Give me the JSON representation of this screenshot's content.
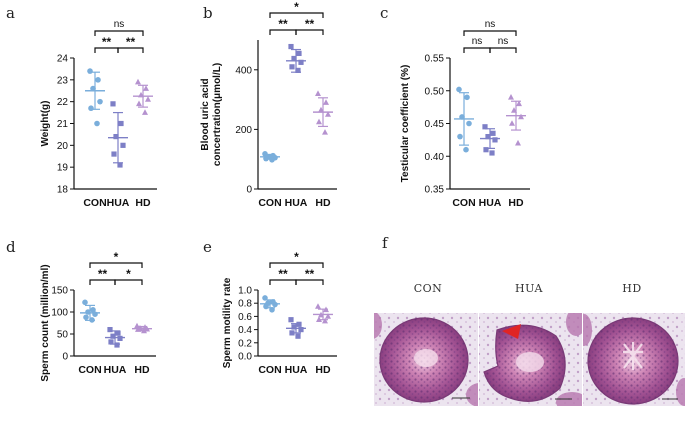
{
  "colors": {
    "CON": "#7aaedb",
    "HUA": "#7d7fc6",
    "HD": "#b592cf",
    "arrow": "#e02424"
  },
  "chart_data": [
    {
      "panel": "a",
      "type": "scatter",
      "ylabel": "Weight(g)",
      "categories": [
        "CON",
        "HUA",
        "HD"
      ],
      "ylim": [
        18,
        24
      ],
      "yticks": [
        "18",
        "19",
        "20",
        "21",
        "22",
        "23",
        "24"
      ],
      "ytick_values": [
        18,
        19,
        20,
        21,
        22,
        23,
        24
      ],
      "series": [
        {
          "name": "CON",
          "shape": "circle",
          "mean": 22.5,
          "sd": 0.85,
          "points": [
            23.4,
            23.0,
            22.6,
            22.0,
            21.7,
            21.0
          ]
        },
        {
          "name": "HUA",
          "shape": "square",
          "mean": 20.35,
          "sd": 1.15,
          "points": [
            21.9,
            21.0,
            20.4,
            20.0,
            19.6,
            19.1
          ]
        },
        {
          "name": "HD",
          "shape": "triangle",
          "mean": 22.25,
          "sd": 0.5,
          "points": [
            22.9,
            22.6,
            22.3,
            22.1,
            21.9,
            21.5
          ]
        }
      ],
      "significance": [
        {
          "from": 0,
          "to": 1,
          "label": "**",
          "level": 0
        },
        {
          "from": 1,
          "to": 2,
          "label": "**",
          "level": 0
        },
        {
          "from": 0,
          "to": 2,
          "label": "ns",
          "level": 1
        }
      ]
    },
    {
      "panel": "b",
      "type": "scatter",
      "ylabel": "Blood uric acid concertration(μmol/L)",
      "ylabel_lines": [
        "Blood uric acid",
        "concertration(μmol/L)"
      ],
      "categories": [
        "CON",
        "HUA",
        "HD"
      ],
      "ylim": [
        0,
        500
      ],
      "yticks": [
        "0",
        "200",
        "400"
      ],
      "ytick_values": [
        0,
        200,
        400
      ],
      "series": [
        {
          "name": "CON",
          "shape": "circle",
          "mean": 108,
          "sd": 8,
          "points": [
            118,
            112,
            108,
            105,
            102,
            98
          ]
        },
        {
          "name": "HUA",
          "shape": "square",
          "mean": 430,
          "sd": 38,
          "points": [
            478,
            455,
            438,
            425,
            410,
            398
          ]
        },
        {
          "name": "HD",
          "shape": "triangle",
          "mean": 258,
          "sd": 48,
          "points": [
            320,
            290,
            265,
            250,
            225,
            190
          ]
        }
      ],
      "significance": [
        {
          "from": 0,
          "to": 1,
          "label": "**",
          "level": 0
        },
        {
          "from": 1,
          "to": 2,
          "label": "**",
          "level": 0
        },
        {
          "from": 0,
          "to": 2,
          "label": "*",
          "level": 1
        }
      ]
    },
    {
      "panel": "c",
      "type": "scatter",
      "ylabel": "Testicular coefficient (%)",
      "categories": [
        "CON",
        "HUA",
        "HD"
      ],
      "ylim": [
        0.35,
        0.55
      ],
      "yticks": [
        "0.35",
        "0.40",
        "0.45",
        "0.50",
        "0.55"
      ],
      "ytick_values": [
        0.35,
        0.4,
        0.45,
        0.5,
        0.55
      ],
      "series": [
        {
          "name": "CON",
          "shape": "circle",
          "mean": 0.457,
          "sd": 0.04,
          "points": [
            0.502,
            0.49,
            0.46,
            0.45,
            0.43,
            0.41
          ]
        },
        {
          "name": "HUA",
          "shape": "square",
          "mean": 0.427,
          "sd": 0.015,
          "points": [
            0.445,
            0.435,
            0.43,
            0.425,
            0.41,
            0.405
          ]
        },
        {
          "name": "HD",
          "shape": "triangle",
          "mean": 0.462,
          "sd": 0.022,
          "points": [
            0.49,
            0.48,
            0.47,
            0.46,
            0.45,
            0.42
          ]
        }
      ],
      "significance": [
        {
          "from": 0,
          "to": 1,
          "label": "ns",
          "level": 0
        },
        {
          "from": 1,
          "to": 2,
          "label": "ns",
          "level": 0
        },
        {
          "from": 0,
          "to": 2,
          "label": "ns",
          "level": 1
        }
      ]
    },
    {
      "panel": "d",
      "type": "scatter",
      "ylabel": "Sperm count (million/ml)",
      "categories": [
        "CON",
        "HUA",
        "HD"
      ],
      "ylim": [
        0,
        150
      ],
      "yticks": [
        "0",
        "50",
        "100",
        "150"
      ],
      "ytick_values": [
        0,
        50,
        100,
        150
      ],
      "series": [
        {
          "name": "CON",
          "shape": "circle",
          "mean": 98,
          "sd": 17,
          "points": [
            122,
            105,
            100,
            95,
            88,
            82
          ]
        },
        {
          "name": "HUA",
          "shape": "square",
          "mean": 42,
          "sd": 15,
          "points": [
            60,
            52,
            45,
            40,
            32,
            25
          ]
        },
        {
          "name": "HD",
          "shape": "triangle",
          "mean": 62,
          "sd": 5,
          "points": [
            68,
            65,
            63,
            61,
            60,
            57
          ]
        }
      ],
      "significance": [
        {
          "from": 0,
          "to": 1,
          "label": "**",
          "level": 0
        },
        {
          "from": 1,
          "to": 2,
          "label": "*",
          "level": 0
        },
        {
          "from": 0,
          "to": 2,
          "label": "*",
          "level": 1
        }
      ]
    },
    {
      "panel": "e",
      "type": "scatter",
      "ylabel": "Sperm motility rate",
      "categories": [
        "CON",
        "HUA",
        "HD"
      ],
      "ylim": [
        0,
        1.0
      ],
      "yticks": [
        "0.0",
        "0.2",
        "0.4",
        "0.6",
        "0.8",
        "1.0"
      ],
      "ytick_values": [
        0,
        0.2,
        0.4,
        0.6,
        0.8,
        1.0
      ],
      "series": [
        {
          "name": "CON",
          "shape": "circle",
          "mean": 0.79,
          "sd": 0.06,
          "points": [
            0.88,
            0.82,
            0.8,
            0.78,
            0.75,
            0.7
          ]
        },
        {
          "name": "HUA",
          "shape": "square",
          "mean": 0.42,
          "sd": 0.07,
          "points": [
            0.55,
            0.48,
            0.44,
            0.4,
            0.35,
            0.3
          ]
        },
        {
          "name": "HD",
          "shape": "triangle",
          "mean": 0.63,
          "sd": 0.08,
          "points": [
            0.75,
            0.7,
            0.62,
            0.6,
            0.55,
            0.53
          ]
        }
      ],
      "significance": [
        {
          "from": 0,
          "to": 1,
          "label": "**",
          "level": 0
        },
        {
          "from": 1,
          "to": 2,
          "label": "**",
          "level": 0
        },
        {
          "from": 0,
          "to": 2,
          "label": "*",
          "level": 1
        }
      ]
    }
  ],
  "histology": {
    "panel": "f",
    "labels": [
      "CON",
      "HUA",
      "HD"
    ]
  }
}
